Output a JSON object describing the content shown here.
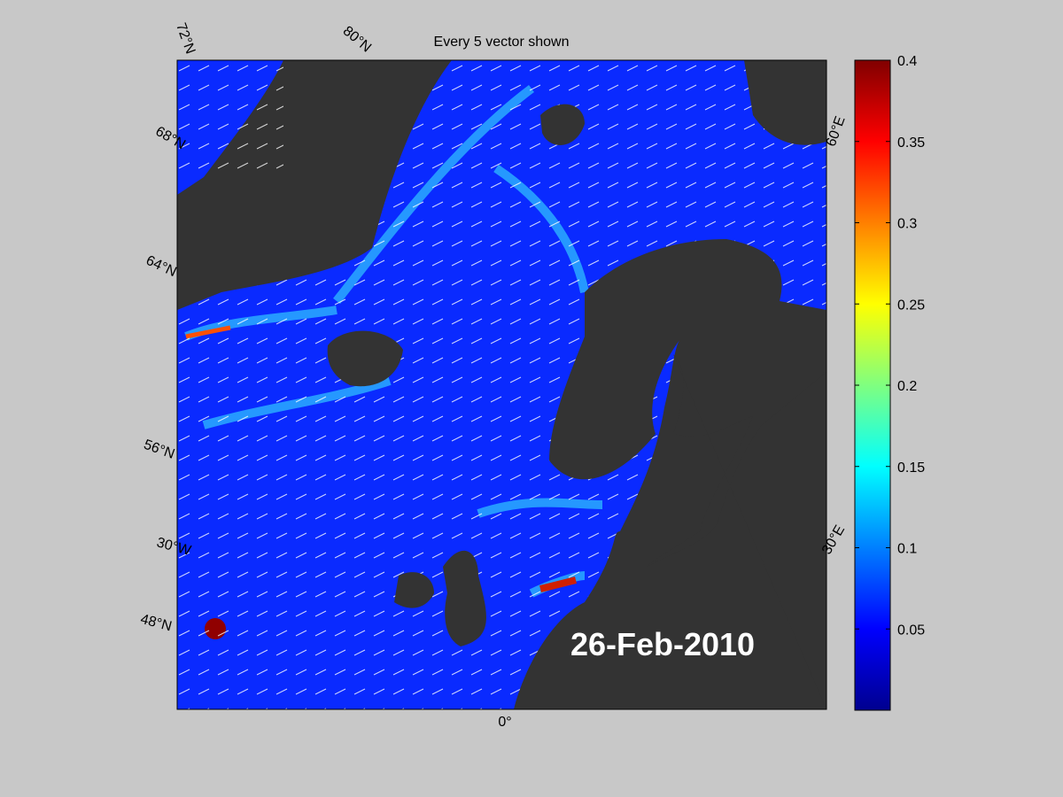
{
  "map": {
    "title": "Every 5 vector shown",
    "date": "26-Feb-2010",
    "grid_labels": [
      "72°N",
      "80°N",
      "68°N",
      "60°E",
      "64°N",
      "56°N",
      "30°W",
      "30°E",
      "48°N",
      "0°"
    ]
  },
  "colorbar": {
    "lim": [
      0,
      0.4
    ],
    "ticks": [
      0.05,
      0.1,
      0.15,
      0.2,
      0.25,
      0.3,
      0.35,
      0.4
    ]
  }
}
